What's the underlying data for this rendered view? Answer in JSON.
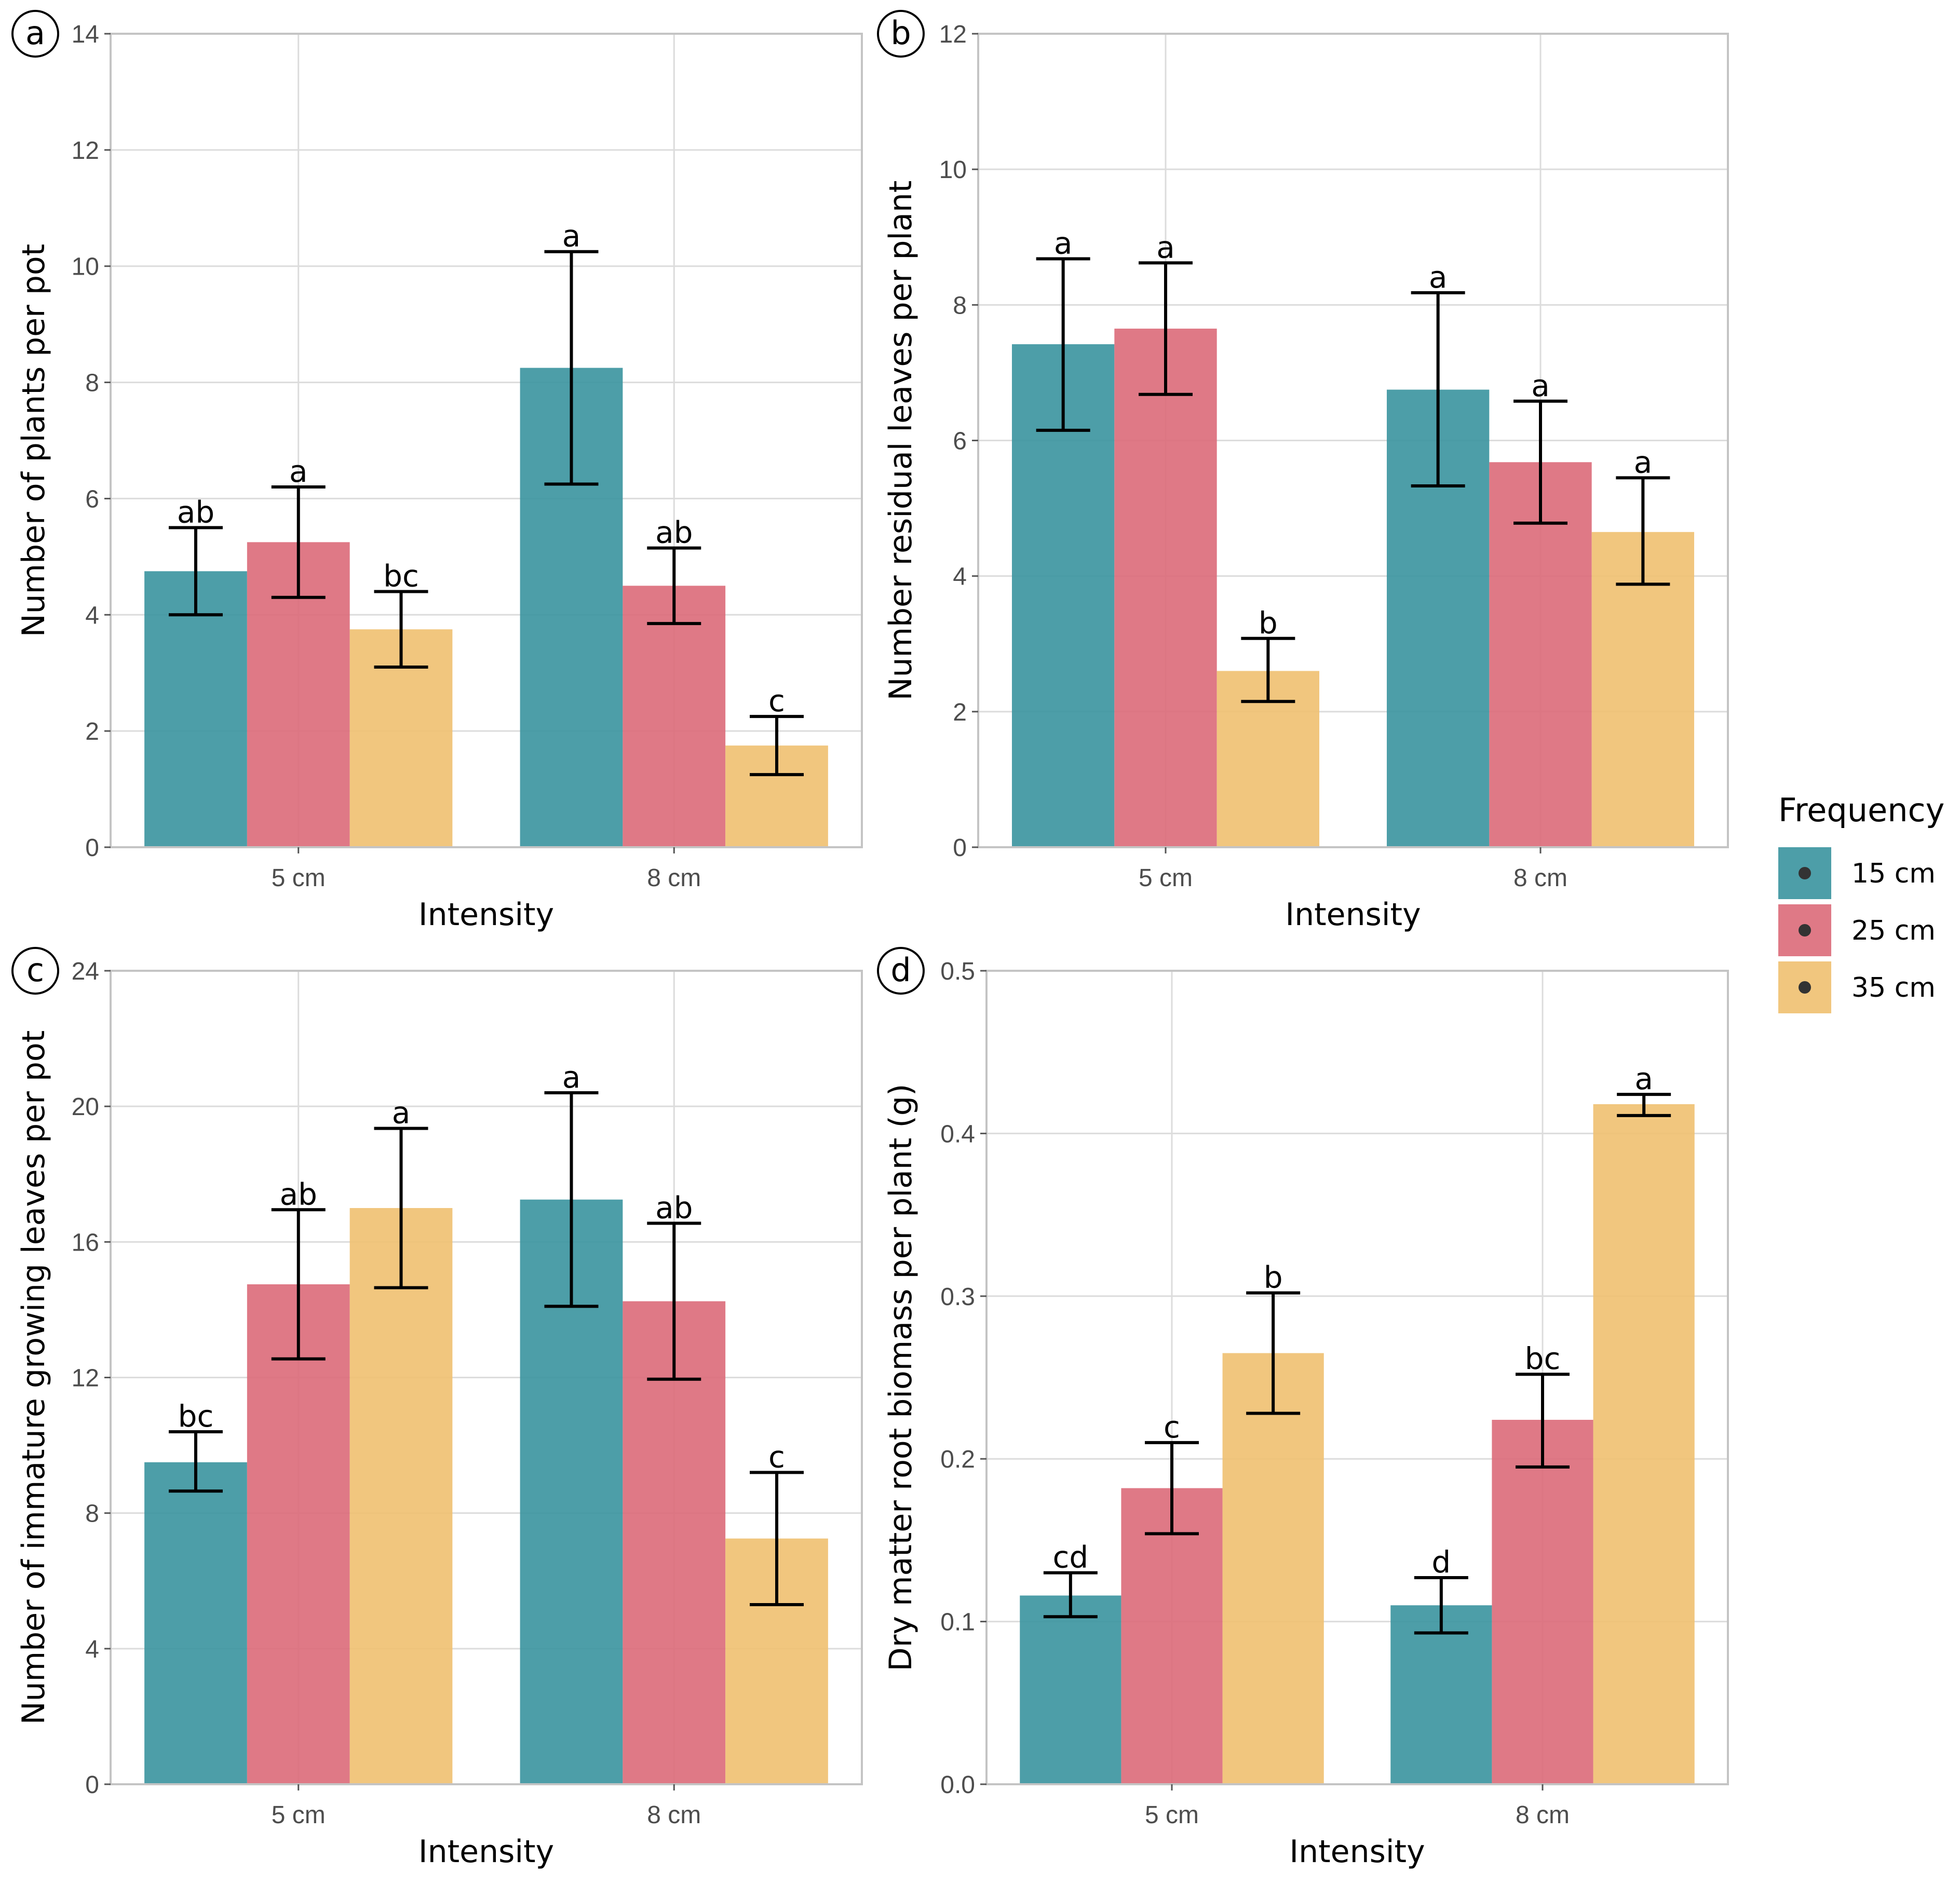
{
  "colors": {
    "series": [
      "#3a939f",
      "#dc6a79",
      "#f0c070"
    ],
    "bar_opacity": 0.9
  },
  "legend": {
    "title": "Frequency",
    "entries": [
      "15 cm",
      "25 cm",
      "35 cm"
    ]
  },
  "chart_data": [
    {
      "panel_label": "a",
      "type": "bar",
      "xlabel": "Intensity",
      "ylabel": "Number of plants per pot",
      "categories": [
        "5 cm",
        "8 cm"
      ],
      "ylim": [
        0,
        14
      ],
      "yticks": [
        0,
        2,
        4,
        6,
        8,
        10,
        12,
        14
      ],
      "ytick_labels": [
        "0",
        "2",
        "4",
        "6",
        "8",
        "10",
        "12",
        "14"
      ],
      "series": [
        {
          "name": "15 cm",
          "values": [
            4.75,
            8.25
          ],
          "err_low": [
            4.0,
            6.25
          ],
          "err_high": [
            5.5,
            10.25
          ],
          "letters": [
            "ab",
            "a"
          ]
        },
        {
          "name": "25 cm",
          "values": [
            5.25,
            4.5
          ],
          "err_low": [
            4.3,
            3.85
          ],
          "err_high": [
            6.2,
            5.15
          ],
          "letters": [
            "a",
            "ab"
          ]
        },
        {
          "name": "35 cm",
          "values": [
            3.75,
            1.75
          ],
          "err_low": [
            3.1,
            1.25
          ],
          "err_high": [
            4.4,
            2.25
          ],
          "letters": [
            "bc",
            "c"
          ]
        }
      ]
    },
    {
      "panel_label": "b",
      "type": "bar",
      "xlabel": "Intensity",
      "ylabel": "Number residual leaves per plant",
      "categories": [
        "5 cm",
        "8 cm"
      ],
      "ylim": [
        0,
        12
      ],
      "yticks": [
        0,
        2,
        4,
        6,
        8,
        10,
        12
      ],
      "ytick_labels": [
        "0",
        "2",
        "4",
        "6",
        "8",
        "10",
        "12"
      ],
      "series": [
        {
          "name": "15 cm",
          "values": [
            7.42,
            6.75
          ],
          "err_low": [
            6.15,
            5.33
          ],
          "err_high": [
            8.68,
            8.18
          ],
          "letters": [
            "a",
            "a"
          ]
        },
        {
          "name": "25 cm",
          "values": [
            7.65,
            5.68
          ],
          "err_low": [
            6.68,
            4.78
          ],
          "err_high": [
            8.62,
            6.58
          ],
          "letters": [
            "a",
            "a"
          ]
        },
        {
          "name": "35 cm",
          "values": [
            2.6,
            4.65
          ],
          "err_low": [
            2.15,
            3.88
          ],
          "err_high": [
            3.08,
            5.45
          ],
          "letters": [
            "b",
            "a"
          ]
        }
      ]
    },
    {
      "panel_label": "c",
      "type": "bar",
      "xlabel": "Intensity",
      "ylabel": "Number of immature growing leaves per pot",
      "categories": [
        "5 cm",
        "8 cm"
      ],
      "ylim": [
        0,
        24
      ],
      "yticks": [
        0,
        4,
        8,
        12,
        16,
        20,
        24
      ],
      "ytick_labels": [
        "0",
        "4",
        "8",
        "12",
        "16",
        "20",
        "24"
      ],
      "series": [
        {
          "name": "15 cm",
          "values": [
            9.5,
            17.25
          ],
          "err_low": [
            8.65,
            14.1
          ],
          "err_high": [
            10.4,
            20.4
          ],
          "letters": [
            "bc",
            "a"
          ]
        },
        {
          "name": "25 cm",
          "values": [
            14.75,
            14.25
          ],
          "err_low": [
            12.55,
            11.95
          ],
          "err_high": [
            16.95,
            16.55
          ],
          "letters": [
            "ab",
            "ab"
          ]
        },
        {
          "name": "35 cm",
          "values": [
            17.0,
            7.25
          ],
          "err_low": [
            14.65,
            5.3
          ],
          "err_high": [
            19.35,
            9.2
          ],
          "letters": [
            "a",
            "c"
          ]
        }
      ]
    },
    {
      "panel_label": "d",
      "type": "bar",
      "xlabel": "Intensity",
      "ylabel": "Dry matter root biomass per plant (g)",
      "categories": [
        "5 cm",
        "8 cm"
      ],
      "ylim": [
        0,
        0.5
      ],
      "yticks": [
        0,
        0.1,
        0.2,
        0.3,
        0.4,
        0.5
      ],
      "ytick_labels": [
        "0.0",
        "0.1",
        "0.2",
        "0.3",
        "0.4",
        "0.5"
      ],
      "series": [
        {
          "name": "15 cm",
          "values": [
            0.116,
            0.11
          ],
          "err_low": [
            0.103,
            0.093
          ],
          "err_high": [
            0.13,
            0.127
          ],
          "letters": [
            "cd",
            "d"
          ]
        },
        {
          "name": "25 cm",
          "values": [
            0.182,
            0.224
          ],
          "err_low": [
            0.154,
            0.195
          ],
          "err_high": [
            0.21,
            0.252
          ],
          "letters": [
            "c",
            "bc"
          ]
        },
        {
          "name": "35 cm",
          "values": [
            0.265,
            0.418
          ],
          "err_low": [
            0.228,
            0.411
          ],
          "err_high": [
            0.302,
            0.424
          ],
          "letters": [
            "b",
            "a"
          ]
        }
      ]
    }
  ]
}
